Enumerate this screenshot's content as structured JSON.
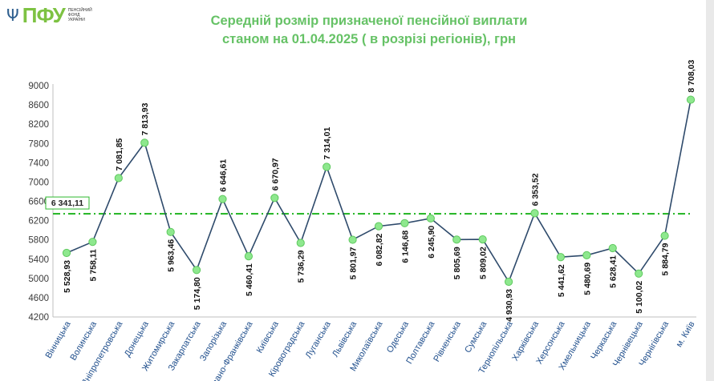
{
  "header": {
    "logo_mark": "ПФУ",
    "logo_text_1": "Пенсійний",
    "logo_text_2": "фонд",
    "logo_text_3": "України",
    "title_line1": "Середній розмір призначеної пенсійної виплати",
    "title_line2": "станом на 01.04.2025 ( в розрізі регіонів), грн"
  },
  "colors": {
    "line": "#2e4a6b",
    "marker": "#8ee88e",
    "marker_stroke": "#5fc95f",
    "average": "#2db82d",
    "title": "#66c266"
  },
  "chart_data": {
    "type": "line",
    "title": "Середній розмір призначеної пенсійної виплати станом на 01.04.2025 ( в розрізі регіонів), грн",
    "xlabel": "",
    "ylabel": "",
    "ylim": [
      4200,
      9000
    ],
    "yticks": [
      4200,
      4600,
      5000,
      5400,
      5800,
      6200,
      6600,
      7000,
      7400,
      7800,
      8200,
      8600,
      9000
    ],
    "grid": false,
    "average": {
      "value": 6341.11,
      "label": "6 341,11"
    },
    "categories": [
      "Вінницька",
      "Волинська",
      "Дніпропетровська",
      "Донецька",
      "Житомирська",
      "Закарпатська",
      "Запорізька",
      "Івано-Франківська",
      "Київська",
      "Кіровоградська",
      "Луганська",
      "Львівська",
      "Миколаївська",
      "Одеська",
      "Полтавська",
      "Рівненська",
      "Сумська",
      "Тернопільська",
      "Харківська",
      "Херсонська",
      "Хмельницька",
      "Черкаська",
      "Чернівецька",
      "Чернігівська",
      "м. Київ"
    ],
    "values": [
      5528.93,
      5758.11,
      7081.85,
      7813.93,
      5963.46,
      5174.8,
      6646.61,
      5460.41,
      6670.97,
      5736.29,
      7314.01,
      5801.97,
      6082.82,
      6146.68,
      6245.9,
      5805.69,
      5809.02,
      4930.93,
      6353.52,
      5441.62,
      5480.69,
      5628.41,
      5100.02,
      5884.79,
      8708.03
    ],
    "labels": [
      "5 528,93",
      "5 758,11",
      "7 081,85",
      "7 813,93",
      "5 963,46",
      "5 174,80",
      "6 646,61",
      "5 460,41",
      "6 670,97",
      "5 736,29",
      "7 314,01",
      "5 801,97",
      "6 082,82",
      "6 146,68",
      "6 245,90",
      "5 805,69",
      "5 809,02",
      "4 930,93",
      "6 353,52",
      "5 441,62",
      "5 480,69",
      "5 628,41",
      "5 100,02",
      "5 884,79",
      "8 708,03"
    ],
    "label_position": [
      "below",
      "below",
      "above",
      "above",
      "below",
      "below",
      "above",
      "below",
      "above",
      "below",
      "above",
      "below",
      "below",
      "below",
      "below",
      "below",
      "below",
      "below",
      "above",
      "below",
      "below",
      "below",
      "below",
      "below",
      "above"
    ]
  }
}
